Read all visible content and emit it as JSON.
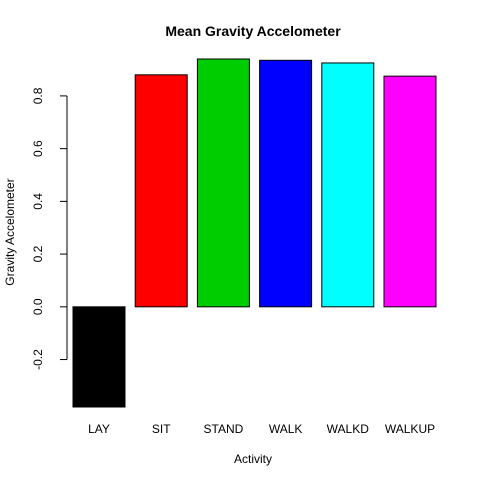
{
  "chart_data": {
    "type": "bar",
    "title": "Mean Gravity Accelometer",
    "xlabel": "Activity",
    "ylabel": "Gravity Accelometer",
    "categories": [
      "LAY",
      "SIT",
      "STAND",
      "WALK",
      "WALKD",
      "WALKUP"
    ],
    "values": [
      -0.38,
      0.88,
      0.94,
      0.935,
      0.925,
      0.875
    ],
    "colors": [
      "#000000",
      "#ff0000",
      "#00cd00",
      "#0000ff",
      "#00ffff",
      "#ff00ff"
    ],
    "ylim": [
      -0.38,
      0.94
    ],
    "yticks": [
      -0.2,
      0.0,
      0.2,
      0.4,
      0.6,
      0.8
    ],
    "ytick_labels": [
      "-0.2",
      "0.0",
      "0.2",
      "0.4",
      "0.6",
      "0.8"
    ],
    "grid": false,
    "legend": "none"
  }
}
